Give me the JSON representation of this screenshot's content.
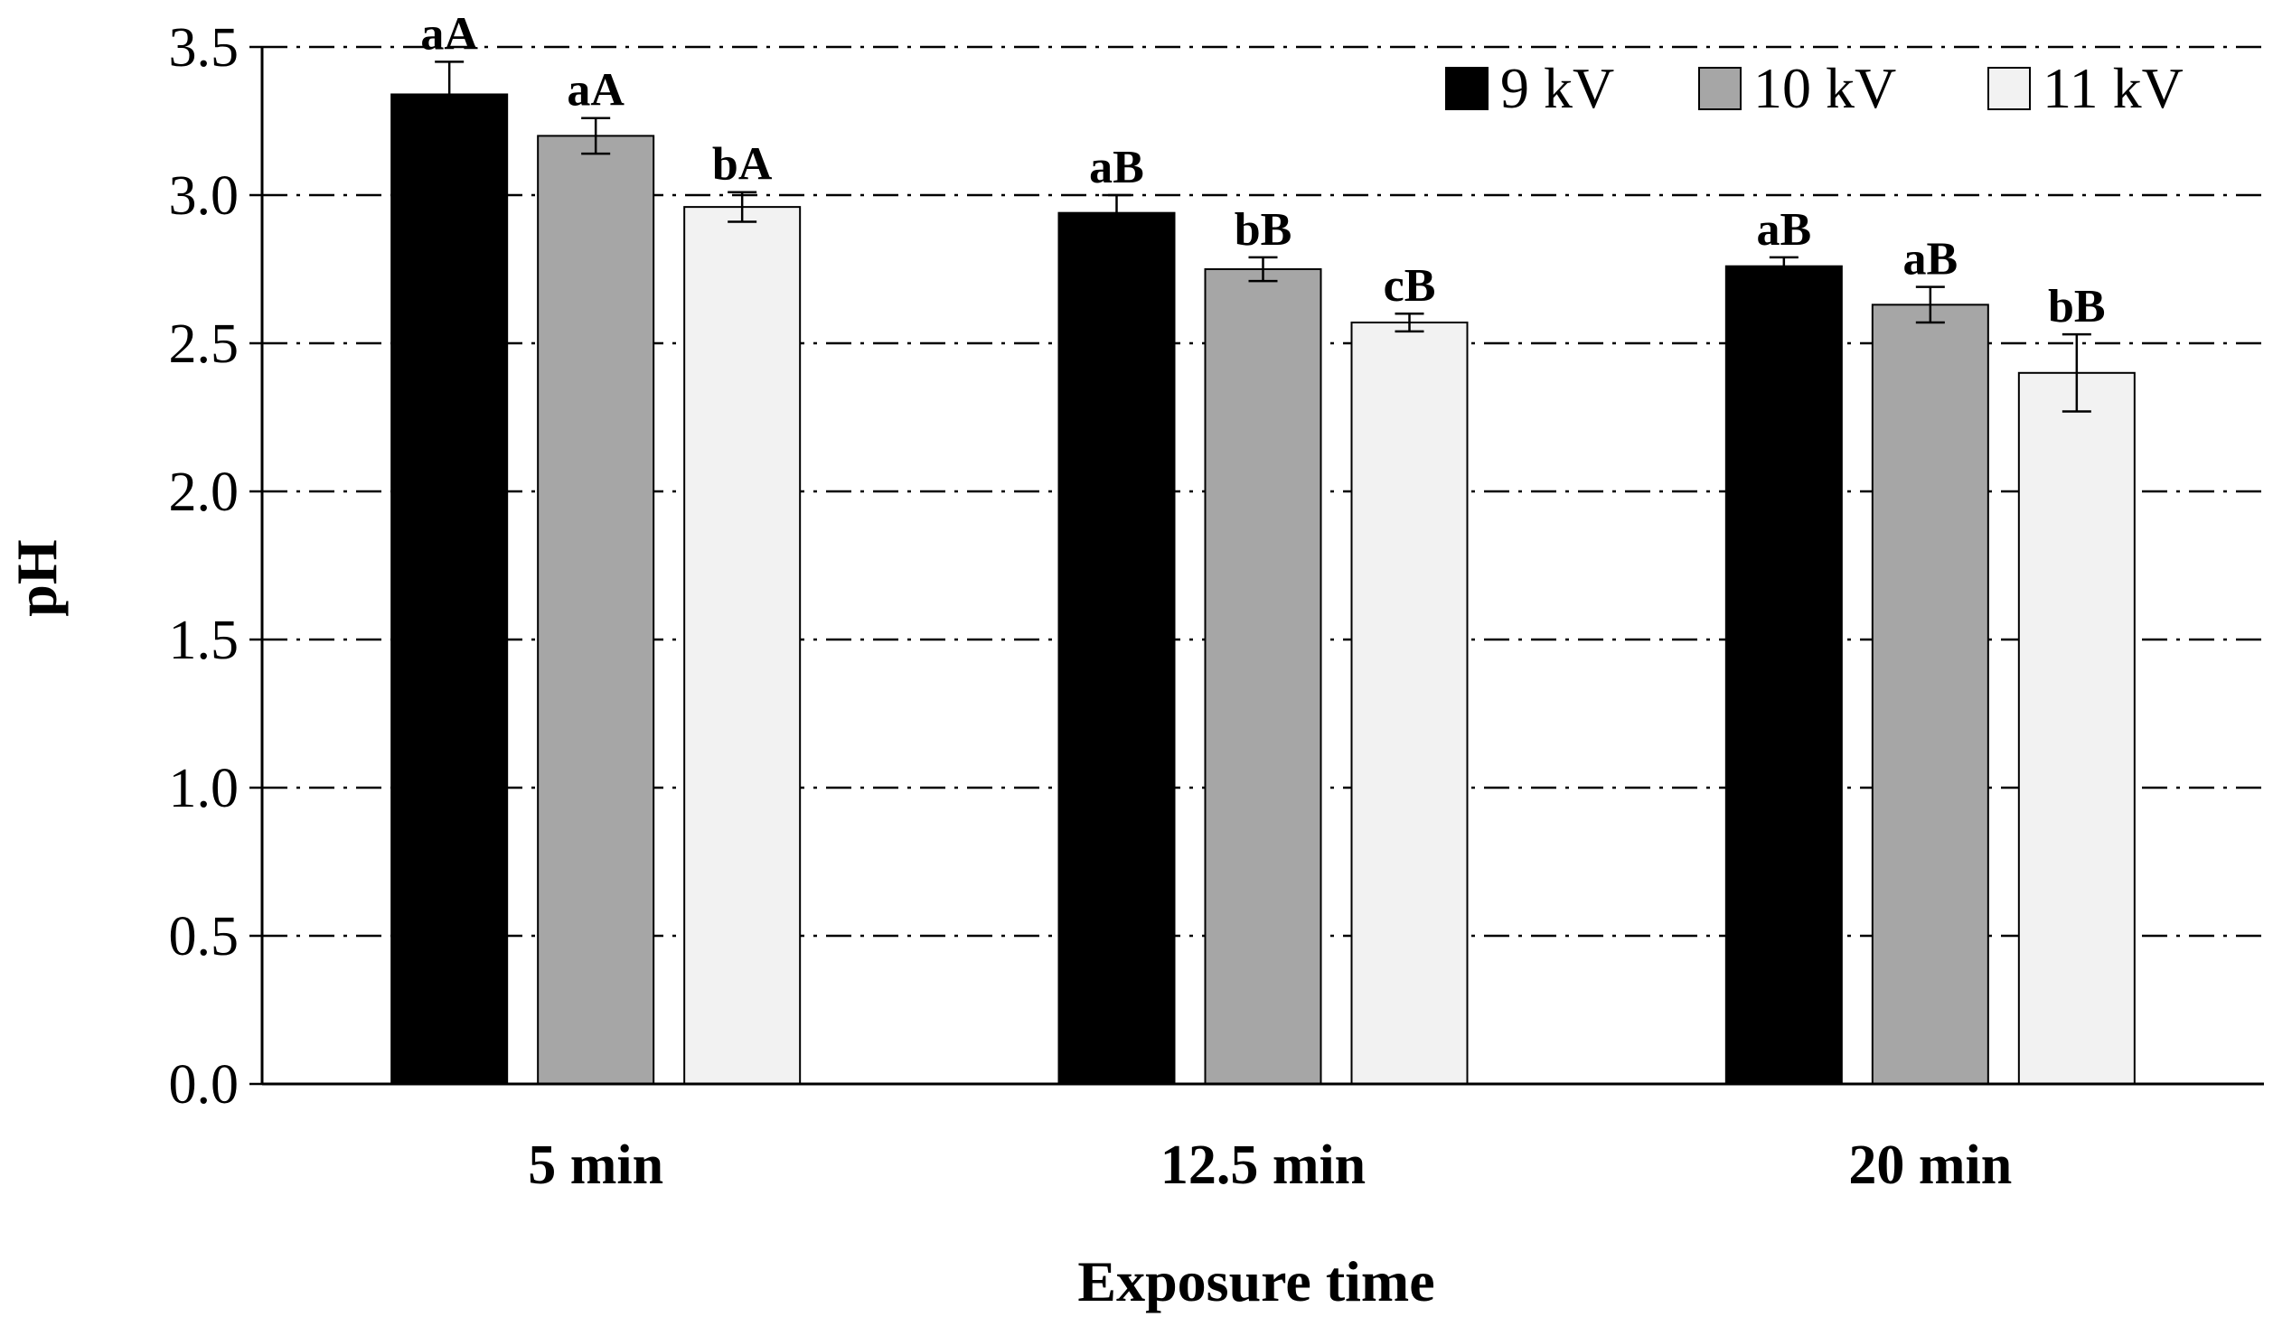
{
  "chart_data": {
    "type": "bar",
    "title": "",
    "xlabel": "Exposure time",
    "ylabel": "pH",
    "ylim": [
      0,
      3.5
    ],
    "yticks": [
      "0.0",
      "0.5",
      "1.0",
      "1.5",
      "2.0",
      "2.5",
      "3.0",
      "3.5"
    ],
    "grid": "horizontal dash-dot",
    "legend_position": "top-right",
    "categories": [
      "5 min",
      "12.5 min",
      "20 min"
    ],
    "series": [
      {
        "name": "9 kV",
        "color": "#000000",
        "values": [
          3.34,
          2.94,
          2.76
        ],
        "errors": [
          0.11,
          0.06,
          0.03
        ],
        "labels": [
          "aA",
          "aB",
          "aB"
        ]
      },
      {
        "name": "10 kV",
        "color": "#a6a6a6",
        "values": [
          3.2,
          2.75,
          2.63
        ],
        "errors": [
          0.06,
          0.04,
          0.06
        ],
        "labels": [
          "aA",
          "bB",
          "aB"
        ]
      },
      {
        "name": "11 kV",
        "color": "#f2f2f2",
        "values": [
          2.96,
          2.57,
          2.4
        ],
        "errors": [
          0.05,
          0.03,
          0.13
        ],
        "labels": [
          "bA",
          "cB",
          "bB"
        ]
      }
    ]
  }
}
